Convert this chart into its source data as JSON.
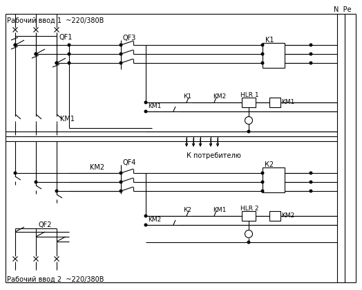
{
  "background_color": "#ffffff",
  "labels": {
    "input1": "Рабочий ввод 1  ~220/380В",
    "input2": "Рабочий ввод 2  ~220/380В",
    "N_Pe": "N  Ре",
    "QF1": "QF1",
    "QF2": "QF2",
    "QF3": "QF3",
    "QF4": "QF4",
    "KM1_top": "KM1",
    "KM2_bot": "KM2",
    "K1_box": "K1",
    "K2_box": "К2",
    "KM1_coil": "KM1",
    "KM2_coil": "KM2",
    "K1_ctrl": "К1",
    "K2_ctrl": "К2",
    "KM2_ctrl_top": "KM2",
    "KM1_ctrl_top": "KM1",
    "KM1_ctrl_bot": "KM1",
    "KM2_ctrl_bot": "KM2",
    "HLR1": "HLR 1",
    "HLR2": "HLR 2",
    "consumer": "К потребителю"
  },
  "figsize": [
    5.24,
    4.19
  ],
  "dpi": 100
}
